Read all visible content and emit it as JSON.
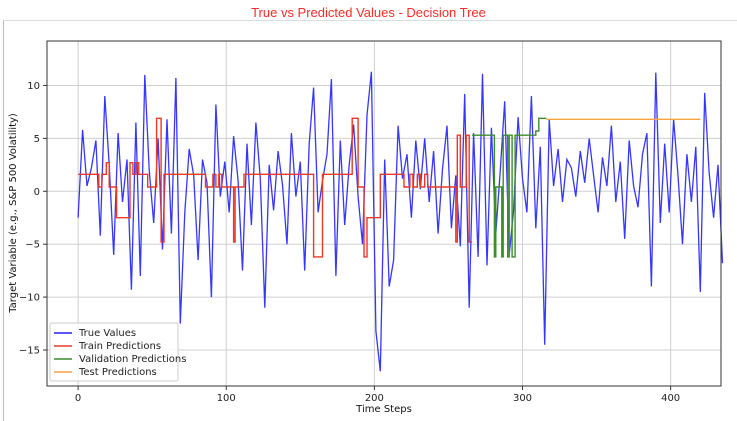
{
  "chart_data": {
    "type": "line",
    "title": "True vs Predicted Values - Decision Tree",
    "xlabel": "Time Steps",
    "ylabel": "Target Variable (e.g., S&P 500 Volatility)",
    "xlim": [
      -21,
      434
    ],
    "ylim": [
      -18.4,
      14.2
    ],
    "xticks": [
      0,
      100,
      200,
      300,
      400
    ],
    "yticks": [
      -15,
      -10,
      -5,
      0,
      5,
      10
    ],
    "grid": true,
    "legend_position": "bottom-left",
    "colors": {
      "true": "#2020ff",
      "train": "#e8392a",
      "validation": "#3c8c2c",
      "test": "#f5a640",
      "title": "#ff2a2a"
    },
    "true_values": {
      "x_start": 0,
      "x_step": 3,
      "y": [
        -2.5,
        5.8,
        0.5,
        2.2,
        4.8,
        -4.2,
        9,
        2.5,
        -6,
        5.5,
        -1,
        3,
        -9.3,
        6.5,
        -8,
        11,
        2,
        -3,
        5,
        -5.5,
        6.8,
        -4,
        10.7,
        -12.5,
        -2,
        4,
        1.5,
        -6.5,
        3,
        0.8,
        -10,
        8.2,
        -0.5,
        2.8,
        -2,
        5.2,
        1,
        -7.5,
        4.5,
        -3.2,
        6.5,
        1.2,
        -11,
        2.5,
        -1.8,
        3.8,
        0.6,
        -5,
        5.5,
        -0.5,
        2.8,
        -7.5,
        4.5,
        9.8,
        -2,
        1,
        3.5,
        10.6,
        -8,
        4.8,
        -3.2,
        2.5,
        6.3,
        -0.5,
        -5,
        7.2,
        11.3,
        -13.2,
        -17,
        3,
        -9,
        -6.5,
        6.2,
        1.2,
        3.5,
        -2.5,
        4.8,
        0.2,
        5,
        -1,
        3.8,
        -4,
        2.1,
        6.2,
        -3.5,
        1.5,
        -5.2,
        9.2,
        -11,
        5.5,
        -6.2,
        11.1,
        -7,
        6,
        -4,
        2,
        8.5,
        -6,
        -1.8,
        7,
        1.2,
        -2,
        9,
        -3.5,
        4.2,
        -14.5,
        6.8,
        0.5,
        4,
        -1,
        3,
        2.2,
        -0.5,
        3.8,
        0.8,
        5,
        1.5,
        -2,
        3.2,
        0.5,
        6.2,
        -1,
        2.8,
        -4.5,
        4.8,
        0.5,
        -1.5,
        3.5,
        5.5,
        -9,
        11.2,
        -3,
        4.5,
        -2,
        6.8,
        1.5,
        -5,
        3.5,
        -1,
        4.2,
        -9.5,
        9.3,
        1.8,
        -2.5,
        2.5,
        -6.8
      ]
    },
    "train_predictions": [
      [
        0,
        14,
        1.6
      ],
      [
        14,
        16,
        0.4
      ],
      [
        16,
        19,
        1.6
      ],
      [
        19,
        21,
        2.7
      ],
      [
        21,
        26,
        0.4
      ],
      [
        26,
        35,
        -2.5
      ],
      [
        35,
        37,
        2.7
      ],
      [
        37,
        39,
        1.6
      ],
      [
        39,
        41,
        2.7
      ],
      [
        41,
        47,
        1.6
      ],
      [
        47,
        53,
        0.4
      ],
      [
        53,
        56,
        6.9
      ],
      [
        56,
        58,
        -4.8
      ],
      [
        58,
        86,
        1.6
      ],
      [
        86,
        91,
        0.4
      ],
      [
        91,
        93,
        1.6
      ],
      [
        93,
        95,
        0.4
      ],
      [
        95,
        97,
        1.6
      ],
      [
        97,
        105,
        0.4
      ],
      [
        105,
        106,
        -4.8
      ],
      [
        106,
        112,
        0.4
      ],
      [
        112,
        159,
        1.6
      ],
      [
        159,
        165,
        -6.2
      ],
      [
        165,
        185,
        1.6
      ],
      [
        185,
        189,
        6.9
      ],
      [
        189,
        193,
        0.4
      ],
      [
        193,
        195,
        -6.2
      ],
      [
        195,
        204,
        -2.5
      ],
      [
        204,
        220,
        1.6
      ],
      [
        220,
        224,
        0.4
      ],
      [
        224,
        226,
        1.6
      ],
      [
        226,
        229,
        0.4
      ],
      [
        229,
        231,
        1.6
      ],
      [
        231,
        234,
        0.4
      ],
      [
        234,
        236,
        1.6
      ],
      [
        236,
        243,
        0.4
      ],
      [
        243,
        255,
        0.4
      ],
      [
        255,
        256,
        -4.8
      ],
      [
        256,
        258,
        5.3
      ],
      [
        258,
        262,
        0.4
      ],
      [
        262,
        264,
        5.3
      ],
      [
        264,
        266,
        -4.8
      ]
    ],
    "validation_predictions": [
      [
        266,
        281,
        5.3
      ],
      [
        281,
        282,
        -6.2
      ],
      [
        282,
        286,
        0.4
      ],
      [
        286,
        287,
        -6.2
      ],
      [
        287,
        290,
        5.3
      ],
      [
        290,
        291,
        -6.2
      ],
      [
        291,
        293,
        5.3
      ],
      [
        293,
        295,
        -6.2
      ],
      [
        295,
        309,
        5.3
      ],
      [
        309,
        311,
        5.7
      ],
      [
        311,
        316,
        6.9
      ]
    ],
    "test_predictions": [
      [
        316,
        420,
        6.8
      ]
    ],
    "legend": [
      "True Values",
      "Train Predictions",
      "Validation Predictions",
      "Test Predictions"
    ]
  }
}
